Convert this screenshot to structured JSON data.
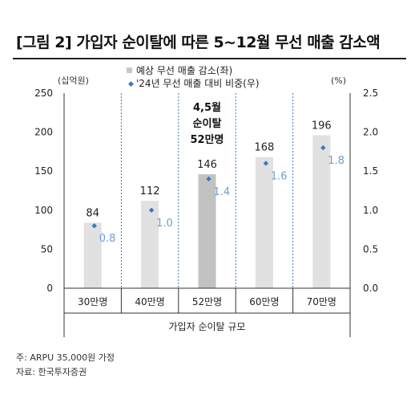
{
  "title": "[그림 2] 가입자 순이탈에 따른 5~12월 무선 매출 감소액",
  "chart_data": {
    "type": "bar",
    "categories": [
      "30만명",
      "40만명",
      "52만명",
      "60만명",
      "70만명"
    ],
    "series": [
      {
        "name": "예상 무선 매출 감소(좌)",
        "values": [
          84,
          112,
          146,
          168,
          196
        ],
        "color": "#e1e1e1",
        "highlight_index": 2,
        "highlight_color": "#c2c2c2"
      },
      {
        "name": "'24년 무선 매출 대비 비중(우)",
        "values": [
          0.8,
          1.0,
          1.4,
          1.6,
          1.8
        ],
        "color": "#3a78c0",
        "label_color": "#6a9fd8"
      }
    ],
    "ylabel_left": "(십억원)",
    "ylabel_right": "(%)",
    "ylim_left": [
      0,
      250
    ],
    "ylim_right": [
      0.0,
      2.5
    ],
    "yticks_left": [
      "0",
      "50",
      "100",
      "150",
      "200",
      "250"
    ],
    "yticks_right": [
      "0.0",
      "0.5",
      "1.0",
      "1.5",
      "2.0",
      "2.5"
    ],
    "xlabel": "가입자 순이탈 규모",
    "annotation": [
      "4,5월",
      "순이탈",
      "52만명"
    ],
    "legend_position": "top-center"
  },
  "footnote": "주: ARPU 35,000원 가정",
  "source": "자료: 한국투자증권"
}
